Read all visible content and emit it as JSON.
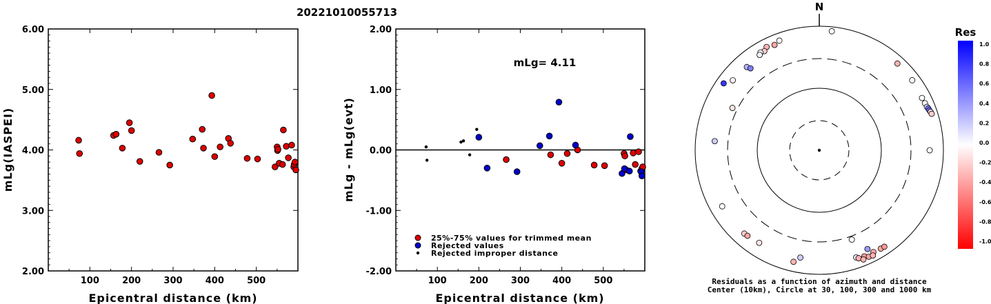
{
  "page_title": "20221010055713",
  "chart_data": [
    {
      "type": "scatter",
      "xlabel": "Epicentral distance (km)",
      "ylabel": "mLg(IASPEI)",
      "xlim": [
        0,
        600
      ],
      "ylim": [
        2.0,
        6.0
      ],
      "xticks": [
        "100",
        "200",
        "300",
        "400",
        "500"
      ],
      "yticks": [
        "2.00",
        "3.00",
        "4.00",
        "5.00",
        "6.00"
      ],
      "color": "#dd0000",
      "points": [
        [
          73,
          4.16
        ],
        [
          75,
          3.94
        ],
        [
          157,
          4.24
        ],
        [
          163,
          4.26
        ],
        [
          178,
          4.03
        ],
        [
          195,
          4.45
        ],
        [
          200,
          4.32
        ],
        [
          220,
          3.81
        ],
        [
          266,
          3.96
        ],
        [
          292,
          3.75
        ],
        [
          347,
          4.18
        ],
        [
          370,
          4.34
        ],
        [
          373,
          4.03
        ],
        [
          393,
          4.9
        ],
        [
          400,
          3.89
        ],
        [
          413,
          4.05
        ],
        [
          433,
          4.19
        ],
        [
          438,
          4.11
        ],
        [
          478,
          3.86
        ],
        [
          503,
          3.85
        ],
        [
          545,
          3.72
        ],
        [
          550,
          4.05
        ],
        [
          551,
          3.99
        ],
        [
          552,
          4.01
        ],
        [
          555,
          3.78
        ],
        [
          563,
          3.76
        ],
        [
          565,
          4.33
        ],
        [
          572,
          4.06
        ],
        [
          577,
          3.87
        ],
        [
          585,
          4.08
        ],
        [
          590,
          3.72
        ],
        [
          591,
          3.76
        ],
        [
          593,
          3.8
        ],
        [
          595,
          3.67
        ]
      ]
    },
    {
      "type": "scatter",
      "xlabel": "Epicentral distance (km)",
      "ylabel": "mLg - mLg(evt)",
      "xlim": [
        0,
        600
      ],
      "ylim": [
        -2.0,
        2.0
      ],
      "xticks": [
        "100",
        "200",
        "300",
        "400",
        "500"
      ],
      "yticks": [
        "-2.00",
        "-1.00",
        "0.00",
        "1.00",
        "2.00"
      ],
      "annotation": "mLg= 4.11",
      "reference_line": 0.0,
      "series": [
        {
          "name": "25%-75% values for trimmed mean",
          "color": "#dd0000",
          "points": [
            [
              266,
              -0.16
            ],
            [
              373,
              -0.08
            ],
            [
              400,
              -0.22
            ],
            [
              413,
              -0.06
            ],
            [
              438,
              0.0
            ],
            [
              478,
              -0.25
            ],
            [
              503,
              -0.26
            ],
            [
              550,
              -0.06
            ],
            [
              552,
              -0.1
            ],
            [
              555,
              -0.33
            ],
            [
              572,
              -0.05
            ],
            [
              577,
              -0.24
            ],
            [
              585,
              -0.03
            ],
            [
              590,
              -0.35
            ],
            [
              593,
              -0.31
            ],
            [
              595,
              -0.28
            ]
          ]
        },
        {
          "name": "Rejected values",
          "color": "#0000cc",
          "points": [
            [
              200,
              0.21
            ],
            [
              220,
              -0.3
            ],
            [
              292,
              -0.36
            ],
            [
              347,
              0.07
            ],
            [
              370,
              0.23
            ],
            [
              393,
              0.79
            ],
            [
              433,
              0.08
            ],
            [
              545,
              -0.39
            ],
            [
              551,
              -0.31
            ],
            [
              563,
              -0.35
            ],
            [
              565,
              0.22
            ],
            [
              591,
              -0.36
            ],
            [
              593,
              -0.43
            ]
          ]
        },
        {
          "name": "Rejected improper distance",
          "color": "#000000",
          "points": [
            [
              73,
              0.05
            ],
            [
              75,
              -0.17
            ],
            [
              157,
              0.13
            ],
            [
              163,
              0.15
            ],
            [
              178,
              -0.08
            ],
            [
              195,
              0.34
            ]
          ]
        }
      ]
    },
    {
      "type": "polar-scatter",
      "north_label": "N",
      "caption_line1": "Residuals as a function of azimuth and distance",
      "caption_line2": "Center (10km), Circle at 30, 100, 300 and 1000 km",
      "colorbar_title": "Res",
      "colorbar_ticks": [
        "1.0",
        "0.8",
        "0.6",
        "0.4",
        "0.2",
        "0.0",
        "-0.2",
        "-0.4",
        "-0.6",
        "-0.8",
        "-1.0"
      ],
      "color_scale": {
        "positive": "#0000ff",
        "zero": "#ffffff",
        "negative": "#ff0000"
      },
      "rings_km": [
        30,
        100,
        300,
        1000
      ],
      "points": [
        {
          "az": 337,
          "dist_km": 700,
          "res": -0.35
        },
        {
          "az": 333,
          "dist_km": 740,
          "res": -0.3
        },
        {
          "az": 331,
          "dist_km": 670,
          "res": -0.2
        },
        {
          "az": 329,
          "dist_km": 690,
          "res": 0.0
        },
        {
          "az": 328,
          "dist_km": 650,
          "res": 0.05
        },
        {
          "az": 340,
          "dist_km": 760,
          "res": 0.0
        },
        {
          "az": 319,
          "dist_km": 600,
          "res": 0.3
        },
        {
          "az": 309,
          "dist_km": 620,
          "res": -0.05
        },
        {
          "az": 305,
          "dist_km": 760,
          "res": 0.79
        },
        {
          "az": 320,
          "dist_km": 530,
          "res": 0.5
        },
        {
          "az": 6,
          "dist_km": 850,
          "res": 0.0
        },
        {
          "az": 42,
          "dist_km": 760,
          "res": -0.3
        },
        {
          "az": 53,
          "dist_km": 750,
          "res": 0.0
        },
        {
          "az": 63,
          "dist_km": 720,
          "res": 0.0
        },
        {
          "az": 66,
          "dist_km": 730,
          "res": -0.05
        },
        {
          "az": 68,
          "dist_km": 740,
          "res": 0.2
        },
        {
          "az": 69,
          "dist_km": 760,
          "res": 0.5
        },
        {
          "az": 70,
          "dist_km": 770,
          "res": 0.6
        },
        {
          "az": 71,
          "dist_km": 790,
          "res": -0.1
        },
        {
          "az": 72,
          "dist_km": 800,
          "res": -0.2
        },
        {
          "az": 90,
          "dist_km": 600,
          "res": 0.0
        },
        {
          "az": 275,
          "dist_km": 490,
          "res": 0.2
        },
        {
          "az": 296,
          "dist_km": 360,
          "res": -0.1
        },
        {
          "az": 240,
          "dist_km": 640,
          "res": 0.0
        },
        {
          "az": 160,
          "dist_km": 340,
          "res": 0.0
        },
        {
          "az": 154,
          "dist_km": 590,
          "res": 0.4
        },
        {
          "az": 161,
          "dist_km": 670,
          "res": 0.1
        },
        {
          "az": 222,
          "dist_km": 640,
          "res": -0.2
        },
        {
          "az": 220,
          "dist_km": 630,
          "res": -0.35
        },
        {
          "az": 213,
          "dist_km": 600,
          "res": -0.1
        },
        {
          "az": 190,
          "dist_km": 570,
          "res": 0.2
        },
        {
          "az": 193,
          "dist_km": 700,
          "res": -0.3
        },
        {
          "az": 157,
          "dist_km": 720,
          "res": -0.4
        },
        {
          "az": 160,
          "dist_km": 710,
          "res": -0.3
        },
        {
          "az": 152,
          "dist_km": 720,
          "res": -0.35
        },
        {
          "az": 148,
          "dist_km": 740,
          "res": -0.35
        },
        {
          "az": 146,
          "dist_km": 750,
          "res": -0.4
        },
        {
          "az": 158,
          "dist_km": 790,
          "res": -0.3
        },
        {
          "az": 155,
          "dist_km": 780,
          "res": -0.35
        },
        {
          "az": 153,
          "dist_km": 800,
          "res": -0.3
        }
      ]
    }
  ]
}
